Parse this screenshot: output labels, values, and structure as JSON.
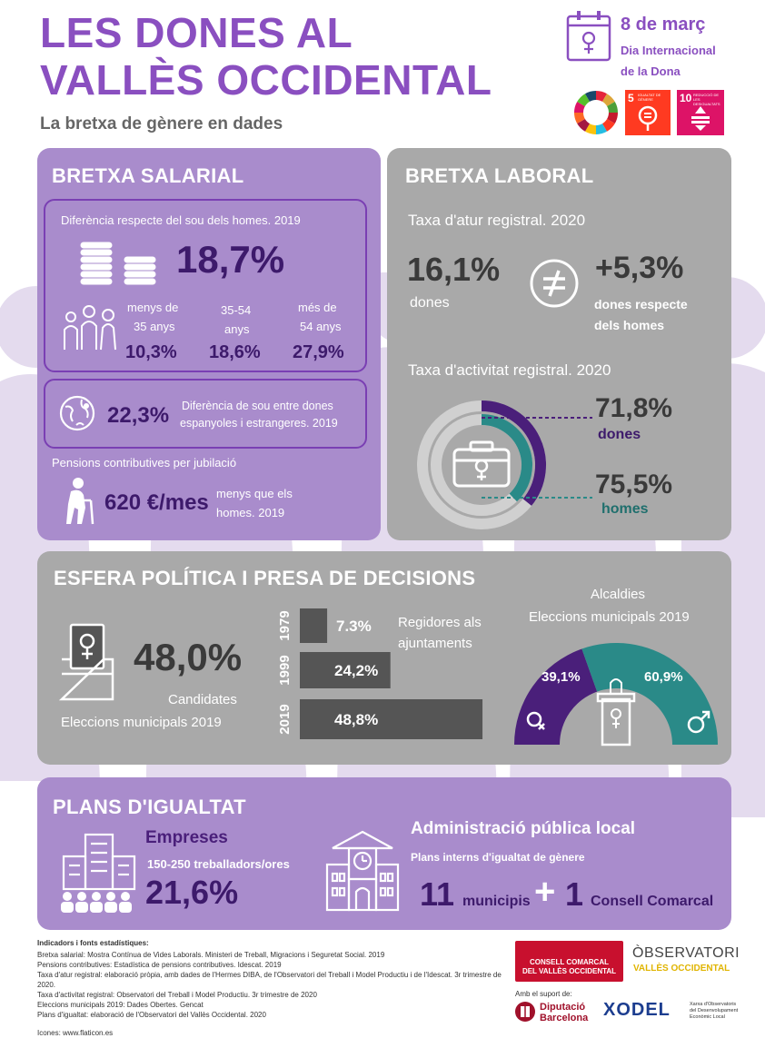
{
  "header": {
    "title_line1": "LES DONES AL",
    "title_line2": "VALLÈS OCCIDENTAL",
    "subtitle": "La bretxa de gènere en dades",
    "date": "8 de març",
    "day_line1": "Dia Internacional",
    "day_line2": "de la Dona",
    "sdg5_label": "5",
    "sdg5_text": "IGUALTAT DE GÈNERE",
    "sdg10_label": "10",
    "sdg10_text": "REDUCCIÓ DE LES DESIGUALTATS"
  },
  "salarial": {
    "title": "BRETXA SALARIAL",
    "diff_label": "Diferència respecte del sou dels homes. 2019",
    "diff_value": "18,7%",
    "age1_label1": "menys de",
    "age1_label2": "35 anys",
    "age1_value": "10,3%",
    "age2_label1": "35-54",
    "age2_label2": "anys",
    "age2_value": "18,6%",
    "age3_label1": "més de",
    "age3_label2": "54 anys",
    "age3_value": "27,9%",
    "foreign_value": "22,3%",
    "foreign_label1": "Diferència de sou entre dones",
    "foreign_label2": "espanyoles i estrangeres. 2019",
    "pension_label": "Pensions contributives per jubilació",
    "pension_value": "620 €/mes",
    "pension_note1": "menys que els",
    "pension_note2": "homes. 2019"
  },
  "laboral": {
    "title": "BRETXA LABORAL",
    "atur_label": "Taxa d'atur registral. 2020",
    "atur_value": "16,1%",
    "atur_who": "dones",
    "atur_diff": "+5,3%",
    "atur_diff_label1": "dones respecte",
    "atur_diff_label2": "dels homes",
    "activitat_label": "Taxa d'activitat registral. 2020",
    "women_value": "71,8%",
    "women_label": "dones",
    "men_value": "75,5%",
    "men_label": "homes"
  },
  "politica": {
    "title": "ESFERA POLÍTICA I PRESA DE DECISIONS",
    "candidates_value": "48,0%",
    "candidates_label1": "Candidates",
    "candidates_label2": "Eleccions municipals 2019",
    "regidores_label1": "Regidores als",
    "regidores_label2": "ajuntaments",
    "alcaldies_label1": "Alcaldies",
    "alcaldies_label2": "Eleccions municipals 2019",
    "women_mayors": "39,1%",
    "men_mayors": "60,9%"
  },
  "chart_data": {
    "type": "bar",
    "categories": [
      "1979",
      "1999",
      "2019"
    ],
    "values": [
      7.3,
      24.2,
      48.8
    ],
    "value_labels": [
      "7.3%",
      "24,2%",
      "48,8%"
    ],
    "orientation": "horizontal"
  },
  "plans": {
    "title": "PLANS D'IGUALTAT",
    "empreses": "Empreses",
    "empreses_sub": "150-250 treballadors/ores",
    "empreses_value": "21,6%",
    "admin": "Administració pública local",
    "admin_sub": "Plans interns d'igualtat de gènere",
    "municipis_value": "11",
    "municipis_label": "municipis",
    "plus": "+",
    "consell_value": "1",
    "consell_label": "Consell Comarcal"
  },
  "footer": {
    "heading": "Indicadors i fonts estadístiques:",
    "lines": [
      "Bretxa salarial: Mostra Contínua de Vides Laborals. Ministeri de Treball, Migracions i Seguretat Social. 2019",
      "Pensions contributives: Estadística de pensions contributives. Idescat. 2019",
      "Taxa d'atur registral: elaboració pròpia, amb dades de l'Hermes DIBA, de l'Observatori del Treball i Model Productiu i de l'Idescat. 3r trimestre de 2020.",
      "Taxa d'activitat registral: Observatori del Treball i Model Productiu. 3r trimestre de 2020",
      "Eleccions municipals 2019: Dades Obertes. Gencat",
      "Plans d'igualtat: elaboració de l'Observatori del Vallès Occidental. 2020"
    ],
    "icons_credit": "Icones: www.flaticon.es",
    "consell_line1": "CONSELL COMARCAL",
    "consell_line2": "DEL VALLÈS OCCIDENTAL",
    "obs_line1": "ÒBSERVATORI",
    "obs_line2": "VALLÈS OCCIDENTAL",
    "support": "Amb el suport de:",
    "diputacio1": "Diputació",
    "diputacio2": "Barcelona",
    "xodel": "XODEL",
    "xodel_desc1": "Xarxa d'Observatoris",
    "xodel_desc2": "del Desenvolupament",
    "xodel_desc3": "Econòmic Local"
  },
  "colors": {
    "purple": "#8a4fc0",
    "purple_panel": "#a98ccc",
    "grey_panel": "#a9a9a9",
    "deep_purple": "#4a1f7a",
    "teal": "#2a8a88"
  }
}
